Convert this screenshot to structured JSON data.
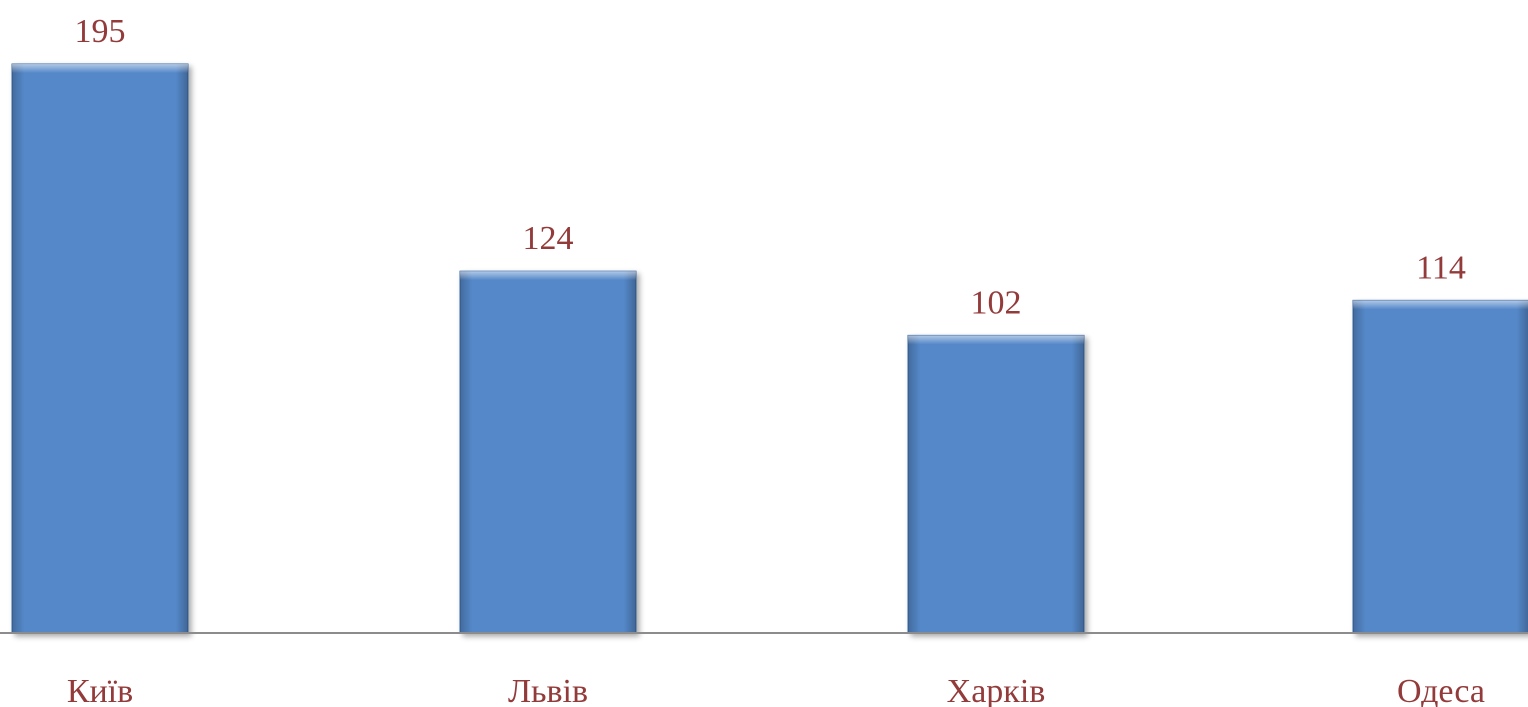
{
  "colors": {
    "bar": "#5588C9",
    "bar_edge": "#3B6AA8",
    "label": "#933A3A",
    "axis": "#8C8C8C",
    "background": "#FFFFFF"
  },
  "chart_data": {
    "type": "bar",
    "categories": [
      "Київ",
      "Львів",
      "Харків",
      "Одеса"
    ],
    "values": [
      195,
      124,
      102,
      114
    ],
    "title": "",
    "xlabel": "",
    "ylabel": "",
    "ylim": [
      0,
      195
    ],
    "grid": false,
    "legend": "none",
    "data_labels": true
  }
}
